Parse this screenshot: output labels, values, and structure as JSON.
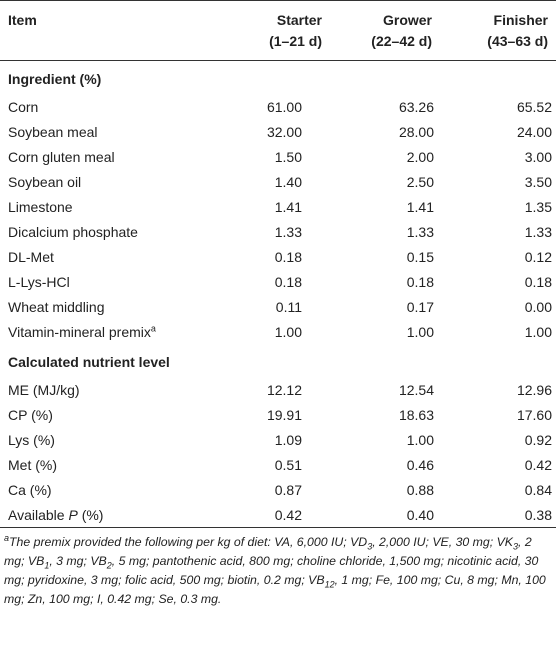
{
  "header": {
    "item": "Item",
    "columns": [
      {
        "name": "Starter",
        "range": "(1–21 d)"
      },
      {
        "name": "Grower",
        "range": "(22–42 d)"
      },
      {
        "name": "Finisher",
        "range": "(43–63 d)"
      }
    ]
  },
  "sections": [
    {
      "title": "Ingredient (%)",
      "rows": [
        {
          "label": "Corn",
          "values": [
            "61.00",
            "63.26",
            "65.52"
          ]
        },
        {
          "label": "Soybean meal",
          "values": [
            "32.00",
            "28.00",
            "24.00"
          ]
        },
        {
          "label": "Corn gluten meal",
          "values": [
            "1.50",
            "2.00",
            "3.00"
          ]
        },
        {
          "label": "Soybean oil",
          "values": [
            "1.40",
            "2.50",
            "3.50"
          ]
        },
        {
          "label": "Limestone",
          "values": [
            "1.41",
            "1.41",
            "1.35"
          ]
        },
        {
          "label": "Dicalcium phosphate",
          "values": [
            "1.33",
            "1.33",
            "1.33"
          ]
        },
        {
          "label": "DL-Met",
          "values": [
            "0.18",
            "0.15",
            "0.12"
          ]
        },
        {
          "label": "L-Lys-HCl",
          "values": [
            "0.18",
            "0.18",
            "0.18"
          ]
        },
        {
          "label": "Wheat middling",
          "values": [
            "0.11",
            "0.17",
            "0.00"
          ]
        },
        {
          "label": "Vitamin-mineral premix",
          "note": "a",
          "values": [
            "1.00",
            "1.00",
            "1.00"
          ]
        }
      ]
    },
    {
      "title": "Calculated nutrient level",
      "rows": [
        {
          "label": "ME (MJ/kg)",
          "values": [
            "12.12",
            "12.54",
            "12.96"
          ]
        },
        {
          "label": "CP (%)",
          "values": [
            "19.91",
            "18.63",
            "17.60"
          ]
        },
        {
          "label": "Lys (%)",
          "values": [
            "1.09",
            "1.00",
            "0.92"
          ]
        },
        {
          "label": "Met (%)",
          "values": [
            "0.51",
            "0.46",
            "0.42"
          ]
        },
        {
          "label": "Ca (%)",
          "values": [
            "0.87",
            "0.88",
            "0.84"
          ]
        },
        {
          "label": "Available",
          "label_italic": "P",
          "label_suffix": "(%)",
          "values": [
            "0.42",
            "0.40",
            "0.38"
          ]
        }
      ]
    }
  ],
  "footnote": {
    "marker": "a",
    "parts": [
      "The premix provided the following per kg of diet: VA, 6,000 IU; VD",
      {
        "sub": "3"
      },
      ", 2,000 IU; VE, 30 mg; VK",
      {
        "sub": "3"
      },
      ", 2 mg; VB",
      {
        "sub": "1"
      },
      ", 3 mg; VB",
      {
        "sub": "2"
      },
      ", 5 mg; pantothenic acid, 800 mg; choline chloride, 1,500 mg; nicotinic acid, 30 mg; pyridoxine, 3 mg; folic acid, 500 mg; biotin, 0.2 mg; VB",
      {
        "sub": "12"
      },
      ", 1 mg; Fe, 100 mg; Cu, 8 mg; Mn, 100 mg; Zn, 100 mg; I, 0.42 mg; Se, 0.3 mg."
    ]
  }
}
